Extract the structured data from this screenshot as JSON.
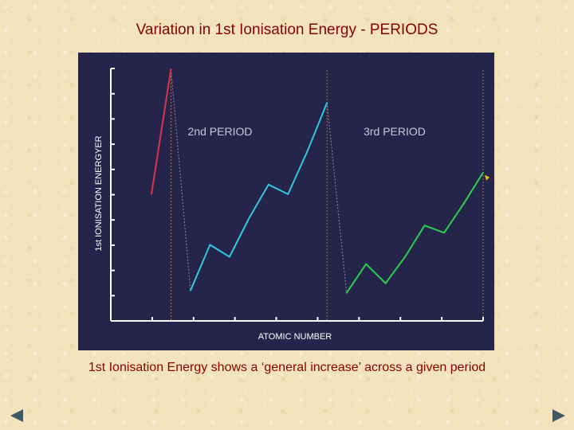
{
  "slide": {
    "title": "Variation in 1st Ionisation Energy - PERIODS",
    "caption": "1st Ionisation Energy shows a ‘general increase’ across a given period"
  },
  "navigation": {
    "prev_icon": "triangle-left-icon",
    "next_icon": "triangle-right-icon"
  },
  "colors": {
    "panel_bg": "#25244a",
    "period1": "#d9364e",
    "period2": "#2ec9e0",
    "period3": "#2bd04a",
    "axis": "#ffffff",
    "dashed": "#c08a55",
    "period_labels": "#c8c8d8",
    "title_text": "#8b0000"
  },
  "chart_data": {
    "type": "line",
    "title": "",
    "xlabel": "ATOMIC NUMBER",
    "ylabel": "1st IONISATION ENERGYER",
    "xlim": [
      1,
      18
    ],
    "ylim": [
      0,
      10
    ],
    "annotations": [
      "2nd PERIOD",
      "3rd PERIOD"
    ],
    "series": [
      {
        "name": "Period 1",
        "color": "#d9364e",
        "x": [
          1,
          2
        ],
        "values": [
          4.6,
          9.8
        ]
      },
      {
        "name": "Period 2",
        "color": "#2ec9e0",
        "x": [
          3,
          4,
          5,
          6,
          7,
          8,
          9,
          10
        ],
        "values": [
          0.6,
          2.5,
          2.0,
          3.6,
          5.0,
          4.6,
          6.4,
          8.4
        ]
      },
      {
        "name": "Period 3",
        "color": "#2bd04a",
        "x": [
          11,
          12,
          13,
          14,
          15,
          16,
          17,
          18
        ],
        "values": [
          0.5,
          1.7,
          0.9,
          2.0,
          3.3,
          3.0,
          4.2,
          5.5
        ]
      }
    ],
    "connectors": [
      {
        "x": [
          2,
          3
        ],
        "values": [
          9.8,
          0.6
        ]
      },
      {
        "x": [
          10,
          11
        ],
        "values": [
          8.4,
          0.5
        ]
      }
    ],
    "dashed_verticals": [
      2,
      10,
      18
    ]
  }
}
